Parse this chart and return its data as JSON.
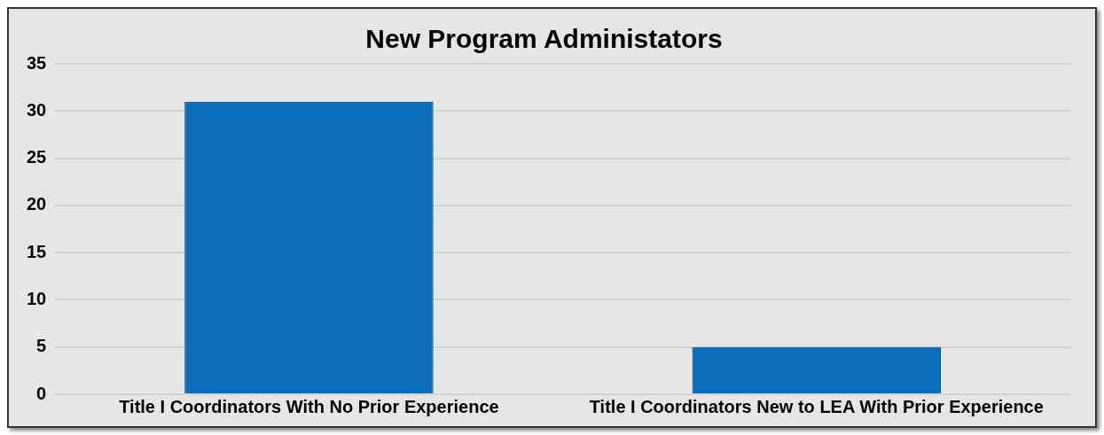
{
  "chart_data": {
    "type": "bar",
    "title": "New Program Administators",
    "categories": [
      "Title I Coordinators With No Prior Experience",
      "Title I Coordinators New to LEA With Prior Experience"
    ],
    "values": [
      31,
      5
    ],
    "color": "#0a6ebd",
    "ylim": [
      0,
      35
    ],
    "yticks": [
      0,
      5,
      10,
      15,
      20,
      25,
      30,
      35
    ],
    "grid": "y",
    "legend": false
  }
}
